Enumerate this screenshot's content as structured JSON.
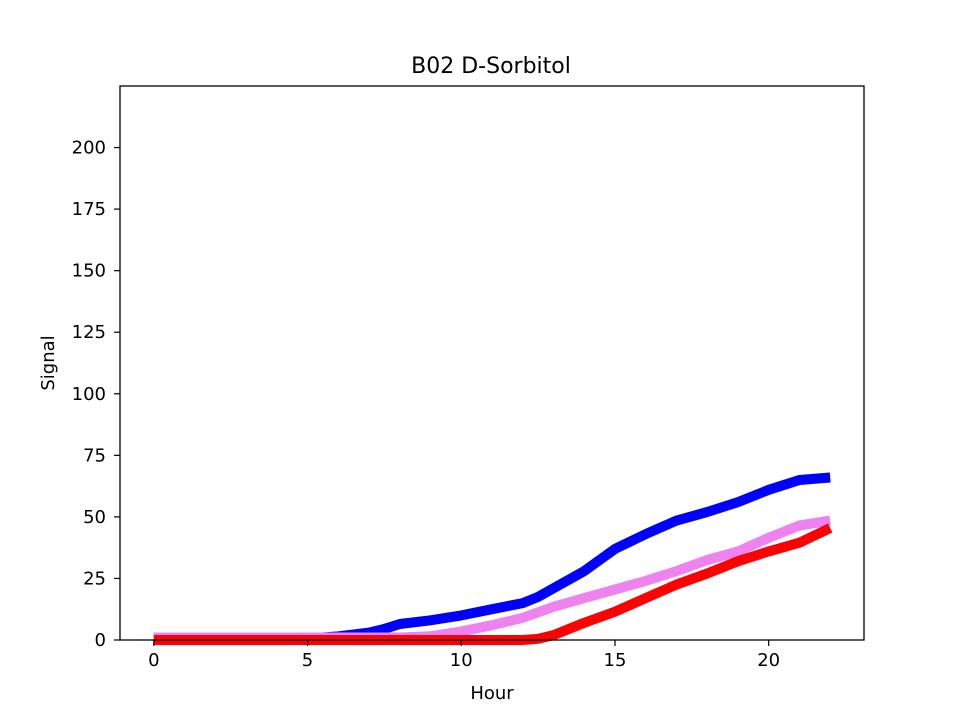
{
  "chart_data": {
    "type": "line",
    "title": "B02 D-Sorbitol",
    "xlabel": "Hour",
    "ylabel": "Signal",
    "xlim": [
      -1.1,
      23.1
    ],
    "ylim": [
      0,
      225
    ],
    "xticks": [
      0,
      5,
      10,
      15,
      20
    ],
    "yticks": [
      0,
      25,
      50,
      75,
      100,
      125,
      150,
      175,
      200
    ],
    "grid": false,
    "legend": "none",
    "series": [
      {
        "color": "#0000ff",
        "x": [
          0,
          1,
          2,
          3,
          4,
          5,
          5.5,
          6,
          7,
          7.5,
          8,
          9,
          10,
          11,
          12,
          12.5,
          13,
          14,
          15,
          16,
          17,
          18,
          19,
          20,
          21,
          22
        ],
        "y": [
          1,
          1,
          1,
          1,
          1,
          1,
          1,
          1.5,
          3,
          4.5,
          6.5,
          8,
          10,
          12.5,
          15,
          17.5,
          21,
          28,
          37,
          43,
          48.5,
          52,
          56,
          61,
          65,
          66
        ]
      },
      {
        "color": "#ee82ee",
        "x": [
          0,
          1,
          2,
          3,
          4,
          5,
          6,
          7,
          8,
          9,
          10,
          11,
          12,
          13,
          14,
          15,
          16,
          17,
          18,
          19,
          20,
          21,
          22
        ],
        "y": [
          1,
          1,
          1,
          1,
          1,
          1,
          1,
          1,
          1,
          1.5,
          3.5,
          6,
          9,
          13.5,
          17,
          20.5,
          24,
          28,
          32.5,
          36,
          41.5,
          46.5,
          48.5
        ]
      },
      {
        "color": "#ff0000",
        "x": [
          0,
          1,
          2,
          3,
          4,
          5,
          6,
          7,
          8,
          9,
          10,
          11,
          12,
          12.5,
          13,
          14,
          15,
          16,
          17,
          18,
          19,
          20,
          21,
          22
        ],
        "y": [
          0,
          0,
          0,
          0,
          0,
          0,
          0,
          0,
          0,
          0,
          0,
          0,
          0,
          0.5,
          2,
          7,
          11.5,
          17,
          22.5,
          27,
          32,
          36,
          39.5,
          45.5
        ]
      }
    ]
  }
}
